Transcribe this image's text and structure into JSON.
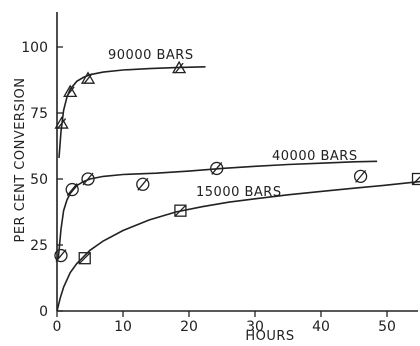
{
  "chart_data": {
    "type": "scatter",
    "xlabel": "HOURS",
    "ylabel": "PER CENT CONVERSION",
    "xlim": [
      0,
      55
    ],
    "ylim": [
      0,
      110
    ],
    "xticks": [
      "0",
      "10",
      "20",
      "30",
      "40",
      "50"
    ],
    "yticks": [
      "0",
      "25",
      "50",
      "75",
      "100"
    ],
    "grid": false,
    "series": [
      {
        "name": "90000 BARS",
        "marker": "triangle",
        "x": [
          0.7,
          2.0,
          4.7,
          18.5
        ],
        "y": [
          71,
          83,
          88,
          92
        ],
        "curve_x": [
          0.3,
          0.6,
          1.0,
          1.5,
          2.0,
          3.0,
          4.0,
          5.0,
          7.0,
          10.0,
          14.0,
          18.0,
          22.5
        ],
        "curve_y": [
          58,
          68,
          76,
          81,
          84,
          87,
          88.5,
          89.5,
          90.5,
          91.3,
          91.8,
          92.2,
          92.5
        ]
      },
      {
        "name": "40000 BARS",
        "marker": "circle",
        "x": [
          0.6,
          2.3,
          4.7,
          13.0,
          24.2,
          46.0
        ],
        "y": [
          21,
          46,
          50,
          48,
          54,
          51
        ],
        "curve_x": [
          0.2,
          0.6,
          1.0,
          1.5,
          2.0,
          3.0,
          4.0,
          5.0,
          7.0,
          10.0,
          15.0,
          20.0,
          25.0,
          30.0,
          35.0,
          40.0,
          45.0,
          48.5
        ],
        "curve_y": [
          20,
          31,
          38,
          42,
          44.5,
          47.5,
          49,
          50,
          51,
          51.7,
          52.2,
          53,
          54,
          54.8,
          55.5,
          56,
          56.5,
          56.7
        ]
      },
      {
        "name": "15000 BARS",
        "marker": "square",
        "x": [
          4.2,
          18.7,
          54.7
        ],
        "y": [
          20,
          38,
          50
        ],
        "curve_x": [
          0.0,
          0.5,
          1.0,
          2.0,
          3.0,
          4.0,
          5.0,
          7.0,
          10.0,
          14.0,
          18.0,
          22.0,
          26.0,
          30.0,
          35.0,
          40.0,
          45.0,
          50.0,
          55.0
        ],
        "curve_y": [
          0,
          5,
          9,
          14.5,
          18,
          20.5,
          23,
          26.5,
          30.5,
          34.5,
          37.5,
          39.5,
          41.2,
          42.5,
          44,
          45.3,
          46.5,
          47.7,
          49
        ]
      }
    ]
  }
}
